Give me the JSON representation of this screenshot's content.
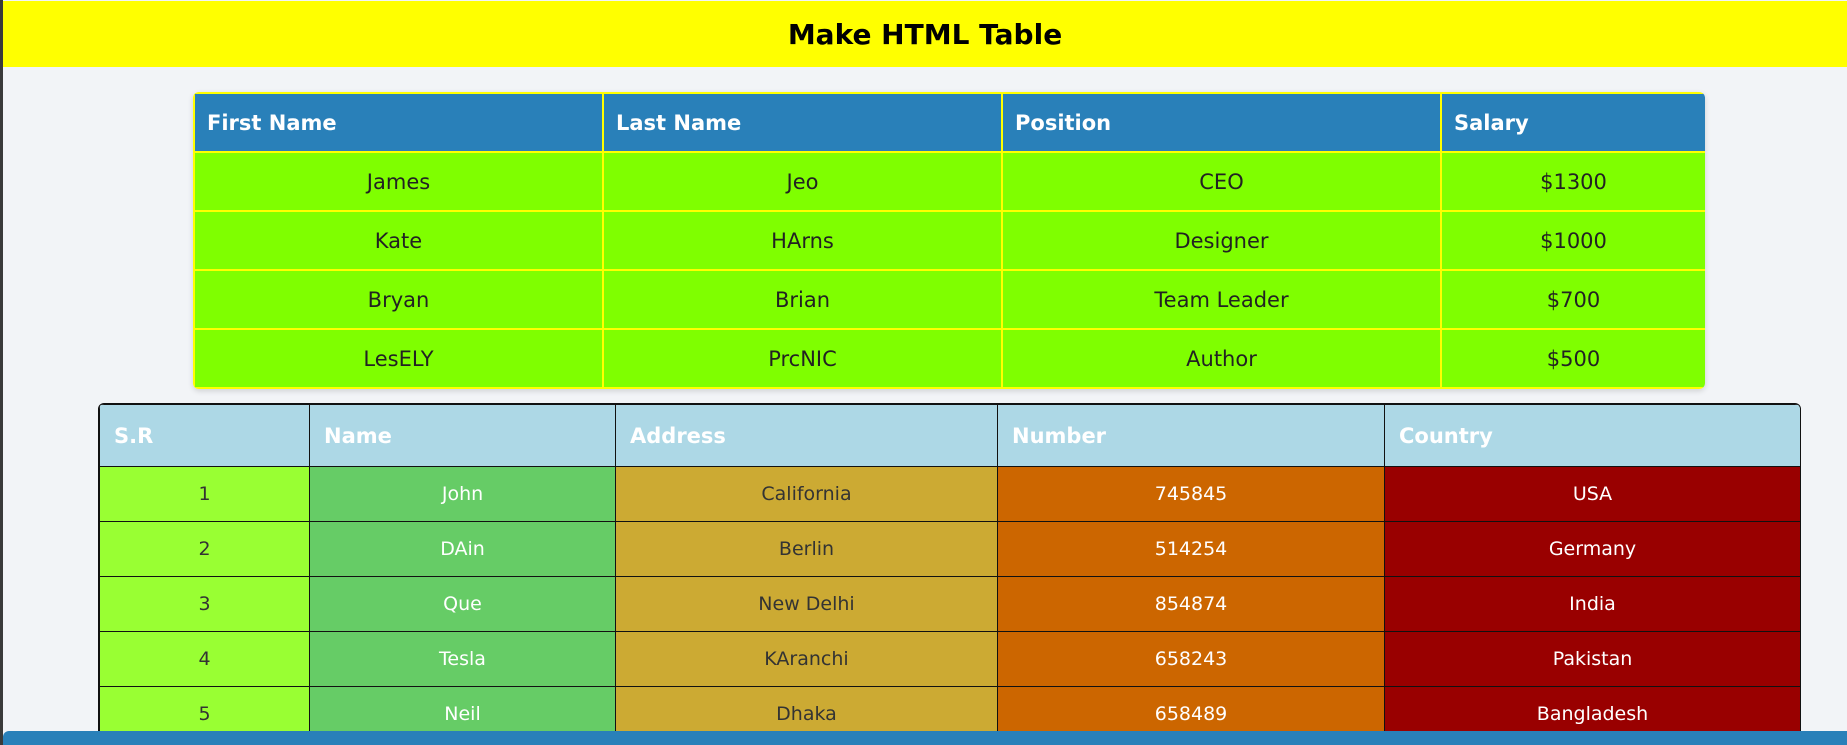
{
  "header": {
    "title": "Make HTML Table"
  },
  "employee_table": {
    "columns": [
      "First Name",
      "Last Name",
      "Position",
      "Salary"
    ],
    "rows": [
      [
        "James",
        "Jeo",
        "CEO",
        "$1300"
      ],
      [
        "Kate",
        "HArns",
        "Designer",
        "$1000"
      ],
      [
        "Bryan",
        "Brian",
        "Team Leader",
        "$700"
      ],
      [
        "LesELY",
        "PrcNIC",
        "Author",
        "$500"
      ]
    ]
  },
  "contact_table": {
    "columns": [
      "S.R",
      "Name",
      "Address",
      "Number",
      "Country"
    ],
    "rows": [
      [
        "1",
        "John",
        "California",
        "745845",
        "USA"
      ],
      [
        "2",
        "DAin",
        "Berlin",
        "514254",
        "Germany"
      ],
      [
        "3",
        "Que",
        "New Delhi",
        "854874",
        "India"
      ],
      [
        "4",
        "Tesla",
        "KAranchi",
        "658243",
        "Pakistan"
      ],
      [
        "5",
        "Neil",
        "Dhaka",
        "658489",
        "Bangladesh"
      ]
    ]
  },
  "colors": {
    "header_bg": "#ffff00",
    "table1_head": "#2980b9",
    "table1_cell": "#7fff00",
    "table2_head": "#add8e6",
    "col_sr": "#99ff33",
    "col_name": "#66cc66",
    "col_address": "#ccaa33",
    "col_number": "#cc6600",
    "col_country": "#990000"
  }
}
